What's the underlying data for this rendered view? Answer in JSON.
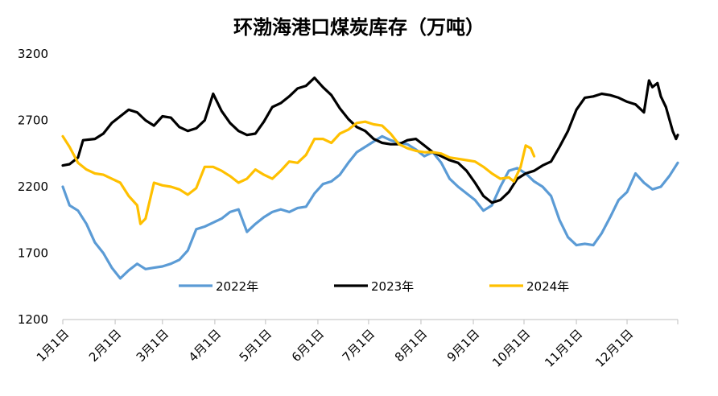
{
  "chart_data": {
    "type": "line",
    "title": "环渤海港口煤炭库存（万吨）",
    "xlabel": "",
    "ylabel": "",
    "ylim": [
      1200,
      3200
    ],
    "yticks": [
      1200,
      1700,
      2200,
      2700,
      3200
    ],
    "x_tick_labels": [
      "1月1日",
      "2月1日",
      "3月1日",
      "4月1日",
      "5月1日",
      "6月1日",
      "7月1日",
      "8月1日",
      "9月1日",
      "10月1日",
      "11月1日",
      "12月1日"
    ],
    "x_tick_days": [
      1,
      32,
      60,
      91,
      121,
      152,
      182,
      213,
      244,
      274,
      305,
      335
    ],
    "grid": false,
    "legend_position": "inside-bottom",
    "series": [
      {
        "name": "2022年",
        "color": "#5b9bd5",
        "points": [
          [
            1,
            2200
          ],
          [
            5,
            2060
          ],
          [
            10,
            2020
          ],
          [
            15,
            1920
          ],
          [
            20,
            1780
          ],
          [
            25,
            1700
          ],
          [
            30,
            1590
          ],
          [
            35,
            1510
          ],
          [
            40,
            1570
          ],
          [
            45,
            1620
          ],
          [
            50,
            1580
          ],
          [
            55,
            1590
          ],
          [
            60,
            1600
          ],
          [
            65,
            1620
          ],
          [
            70,
            1650
          ],
          [
            75,
            1720
          ],
          [
            80,
            1880
          ],
          [
            85,
            1900
          ],
          [
            90,
            1930
          ],
          [
            95,
            1960
          ],
          [
            100,
            2010
          ],
          [
            105,
            2030
          ],
          [
            110,
            1860
          ],
          [
            115,
            1920
          ],
          [
            120,
            1970
          ],
          [
            125,
            2010
          ],
          [
            130,
            2030
          ],
          [
            135,
            2010
          ],
          [
            140,
            2040
          ],
          [
            145,
            2050
          ],
          [
            150,
            2150
          ],
          [
            155,
            2220
          ],
          [
            160,
            2240
          ],
          [
            165,
            2290
          ],
          [
            170,
            2380
          ],
          [
            175,
            2460
          ],
          [
            180,
            2500
          ],
          [
            185,
            2540
          ],
          [
            190,
            2580
          ],
          [
            195,
            2550
          ],
          [
            200,
            2530
          ],
          [
            205,
            2520
          ],
          [
            210,
            2480
          ],
          [
            215,
            2430
          ],
          [
            220,
            2460
          ],
          [
            225,
            2380
          ],
          [
            230,
            2260
          ],
          [
            235,
            2200
          ],
          [
            240,
            2150
          ],
          [
            245,
            2100
          ],
          [
            250,
            2020
          ],
          [
            255,
            2060
          ],
          [
            260,
            2200
          ],
          [
            265,
            2320
          ],
          [
            270,
            2340
          ],
          [
            275,
            2300
          ],
          [
            280,
            2240
          ],
          [
            285,
            2200
          ],
          [
            290,
            2130
          ],
          [
            295,
            1950
          ],
          [
            300,
            1820
          ],
          [
            305,
            1760
          ],
          [
            310,
            1770
          ],
          [
            315,
            1760
          ],
          [
            320,
            1850
          ],
          [
            325,
            1970
          ],
          [
            330,
            2100
          ],
          [
            335,
            2160
          ],
          [
            340,
            2300
          ],
          [
            345,
            2230
          ],
          [
            350,
            2180
          ],
          [
            355,
            2200
          ],
          [
            360,
            2280
          ],
          [
            365,
            2380
          ]
        ]
      },
      {
        "name": "2023年",
        "color": "#000000",
        "points": [
          [
            1,
            2360
          ],
          [
            5,
            2370
          ],
          [
            10,
            2420
          ],
          [
            13,
            2550
          ],
          [
            20,
            2560
          ],
          [
            25,
            2600
          ],
          [
            30,
            2680
          ],
          [
            35,
            2730
          ],
          [
            40,
            2780
          ],
          [
            45,
            2760
          ],
          [
            50,
            2700
          ],
          [
            55,
            2660
          ],
          [
            60,
            2730
          ],
          [
            65,
            2720
          ],
          [
            70,
            2650
          ],
          [
            75,
            2620
          ],
          [
            80,
            2640
          ],
          [
            85,
            2700
          ],
          [
            90,
            2900
          ],
          [
            95,
            2770
          ],
          [
            100,
            2680
          ],
          [
            105,
            2620
          ],
          [
            110,
            2590
          ],
          [
            115,
            2600
          ],
          [
            120,
            2690
          ],
          [
            125,
            2800
          ],
          [
            130,
            2830
          ],
          [
            135,
            2880
          ],
          [
            140,
            2940
          ],
          [
            145,
            2960
          ],
          [
            150,
            3020
          ],
          [
            155,
            2950
          ],
          [
            160,
            2890
          ],
          [
            165,
            2790
          ],
          [
            170,
            2710
          ],
          [
            175,
            2650
          ],
          [
            180,
            2620
          ],
          [
            185,
            2560
          ],
          [
            190,
            2530
          ],
          [
            195,
            2520
          ],
          [
            200,
            2520
          ],
          [
            205,
            2550
          ],
          [
            210,
            2560
          ],
          [
            215,
            2510
          ],
          [
            220,
            2460
          ],
          [
            225,
            2430
          ],
          [
            230,
            2400
          ],
          [
            235,
            2380
          ],
          [
            240,
            2320
          ],
          [
            245,
            2230
          ],
          [
            250,
            2130
          ],
          [
            255,
            2080
          ],
          [
            260,
            2100
          ],
          [
            265,
            2160
          ],
          [
            270,
            2260
          ],
          [
            275,
            2300
          ],
          [
            280,
            2320
          ],
          [
            285,
            2360
          ],
          [
            290,
            2390
          ],
          [
            295,
            2500
          ],
          [
            300,
            2620
          ],
          [
            305,
            2780
          ],
          [
            310,
            2870
          ],
          [
            315,
            2880
          ],
          [
            320,
            2900
          ],
          [
            325,
            2890
          ],
          [
            330,
            2870
          ],
          [
            335,
            2840
          ],
          [
            340,
            2820
          ],
          [
            345,
            2760
          ],
          [
            348,
            3000
          ],
          [
            350,
            2950
          ],
          [
            353,
            2980
          ],
          [
            355,
            2880
          ],
          [
            358,
            2800
          ],
          [
            362,
            2620
          ],
          [
            364,
            2560
          ],
          [
            365,
            2590
          ]
        ]
      },
      {
        "name": "2024年",
        "color": "#ffc000",
        "points": [
          [
            1,
            2580
          ],
          [
            5,
            2500
          ],
          [
            10,
            2380
          ],
          [
            15,
            2330
          ],
          [
            20,
            2300
          ],
          [
            25,
            2290
          ],
          [
            30,
            2260
          ],
          [
            35,
            2230
          ],
          [
            40,
            2130
          ],
          [
            45,
            2060
          ],
          [
            47,
            1920
          ],
          [
            50,
            1960
          ],
          [
            55,
            2230
          ],
          [
            60,
            2210
          ],
          [
            65,
            2200
          ],
          [
            70,
            2180
          ],
          [
            75,
            2140
          ],
          [
            80,
            2190
          ],
          [
            85,
            2350
          ],
          [
            90,
            2350
          ],
          [
            95,
            2320
          ],
          [
            100,
            2280
          ],
          [
            105,
            2230
          ],
          [
            110,
            2260
          ],
          [
            115,
            2330
          ],
          [
            120,
            2290
          ],
          [
            125,
            2260
          ],
          [
            130,
            2320
          ],
          [
            135,
            2390
          ],
          [
            140,
            2380
          ],
          [
            145,
            2440
          ],
          [
            150,
            2560
          ],
          [
            155,
            2560
          ],
          [
            160,
            2530
          ],
          [
            165,
            2600
          ],
          [
            170,
            2630
          ],
          [
            175,
            2680
          ],
          [
            180,
            2690
          ],
          [
            185,
            2670
          ],
          [
            190,
            2660
          ],
          [
            195,
            2600
          ],
          [
            200,
            2520
          ],
          [
            205,
            2490
          ],
          [
            210,
            2470
          ],
          [
            215,
            2460
          ],
          [
            220,
            2460
          ],
          [
            225,
            2450
          ],
          [
            230,
            2420
          ],
          [
            235,
            2410
          ],
          [
            240,
            2400
          ],
          [
            245,
            2390
          ],
          [
            250,
            2350
          ],
          [
            255,
            2300
          ],
          [
            260,
            2260
          ],
          [
            265,
            2270
          ],
          [
            268,
            2240
          ],
          [
            272,
            2350
          ],
          [
            275,
            2510
          ],
          [
            278,
            2490
          ],
          [
            280,
            2430
          ]
        ]
      }
    ]
  }
}
